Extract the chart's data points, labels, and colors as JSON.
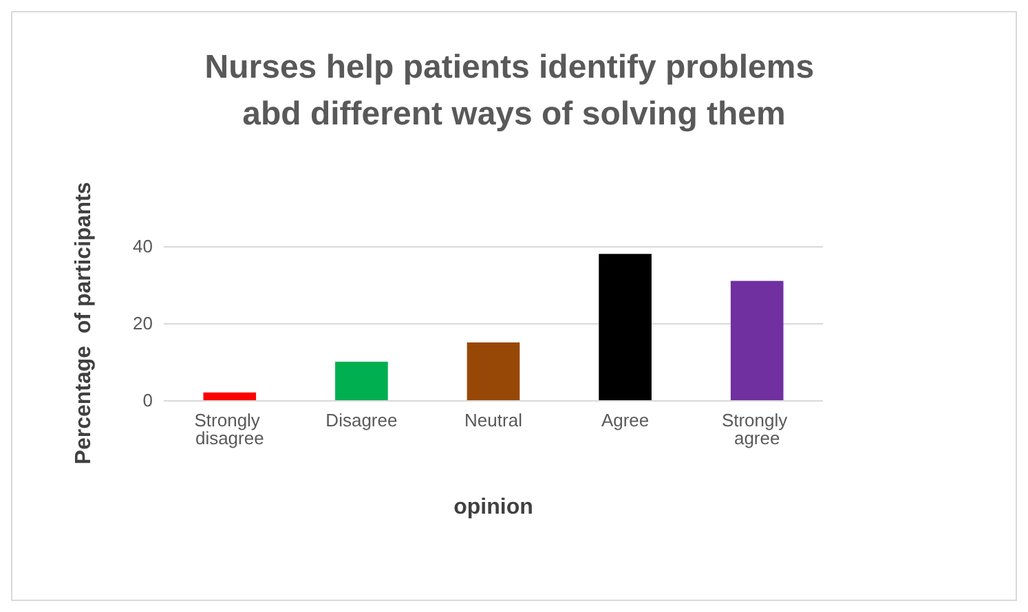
{
  "chart_data": {
    "type": "bar",
    "title": "Nurses help patients identify problems abd different ways of solving them",
    "xlabel": "opinion",
    "ylabel": "Percentage  of participants",
    "categories": [
      "Strongly disagree",
      "Disagree",
      "Neutral",
      "Agree",
      "Strongly agree"
    ],
    "values": [
      2,
      10,
      15,
      38,
      31
    ],
    "colors": [
      "#ff0000",
      "#00b050",
      "#984806",
      "#000000",
      "#7030a0"
    ],
    "ylim": [
      0,
      40
    ],
    "yticks": [
      0,
      20,
      40
    ],
    "grid": "y"
  }
}
